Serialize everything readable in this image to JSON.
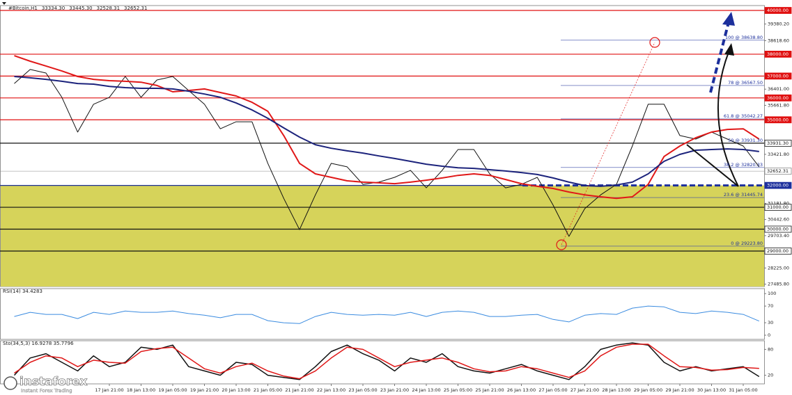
{
  "chart_data": [
    {
      "type": "line",
      "title": "#Bitcoin,H1",
      "header": [
        {
          "value": 33334.3,
          "label": "33334.30"
        },
        {
          "value": 33445.3,
          "label": "33445.30"
        },
        {
          "value": 32528.31,
          "label": "32528.31"
        },
        {
          "value": 32652.31,
          "label": "32652.31"
        }
      ],
      "ylim": [
        27378,
        40223
      ],
      "yticks": [
        {
          "value": 39380.2,
          "label": "39380.20"
        },
        {
          "value": 38618.6,
          "label": "38618.60"
        },
        {
          "value": 36401,
          "label": "36401.00"
        },
        {
          "value": 35661.8,
          "label": "35661.80"
        },
        {
          "value": 33421.8,
          "label": "33421.80"
        },
        {
          "value": 31181.8,
          "label": "31181.80"
        },
        {
          "value": 30442.6,
          "label": "30442.60"
        },
        {
          "value": 29703.4,
          "label": "29703.40"
        },
        {
          "value": 28225,
          "label": "28225.00"
        },
        {
          "value": 27485.8,
          "label": "27485.80"
        }
      ],
      "zone": {
        "from": 32000,
        "color": "#d6d35a"
      },
      "levels": [
        {
          "value": 40000,
          "label": "40000.00",
          "color": "#e01010",
          "style": "solid"
        },
        {
          "value": 38000,
          "label": "38000.00",
          "color": "#e01010",
          "style": "solid"
        },
        {
          "value": 37000,
          "label": "37000.00",
          "color": "#e01010",
          "style": "solid"
        },
        {
          "value": 36000,
          "label": "36000.00",
          "color": "#e01010",
          "style": "solid"
        },
        {
          "value": 35000,
          "label": "35000.00",
          "color": "#e01010",
          "style": "solid"
        },
        {
          "value": 33931.3,
          "label": "33931.30",
          "color": "#111111",
          "style": "solid"
        },
        {
          "value": 32652.31,
          "label": "32652.31",
          "color": "#8a8a8a",
          "style": "thin"
        },
        {
          "value": 32000,
          "label": "32000.00",
          "color": "#1c2f9c",
          "style": "dashed"
        },
        {
          "value": 31000,
          "label": "31000.00",
          "color": "#111111",
          "style": "solid"
        },
        {
          "value": 30000,
          "label": "30000.00",
          "color": "#111111",
          "style": "solid"
        },
        {
          "value": 29000,
          "label": "29000.00",
          "color": "#111111",
          "style": "solid"
        }
      ],
      "fib": [
        {
          "value": 38638.8,
          "label": "100 @ 38638.80"
        },
        {
          "value": 36567.5,
          "label": "78 @ 36567.50"
        },
        {
          "value": 35042.27,
          "label": "61.8 @ 35042.27"
        },
        {
          "value": 33931.3,
          "label": "50 @ 33931.30"
        },
        {
          "value": 32820.33,
          "label": "38.2 @ 32820.33"
        },
        {
          "value": 31445.74,
          "label": "23.6 @ 31445.74"
        },
        {
          "value": 29223.8,
          "label": "0 @ 29223.80"
        }
      ],
      "series": [
        {
          "color": "#111111",
          "width": 1,
          "values": [
            36660,
            37300,
            37140,
            36030,
            34440,
            35710,
            36030,
            36980,
            36030,
            36820,
            36980,
            36340,
            35710,
            34590,
            34910,
            34910,
            33010,
            31410,
            29980,
            31570,
            33010,
            32850,
            32050,
            32150,
            32370,
            32690,
            31890,
            32690,
            33640,
            33640,
            32530,
            31890,
            32050,
            32370,
            31100,
            29670,
            30940,
            31570,
            32050,
            33800,
            35710,
            35710,
            34280,
            34120,
            34440,
            34120,
            33800,
            32850
          ]
        },
        {
          "color": "#e01818",
          "width": 2,
          "values": [
            37930,
            37680,
            37460,
            37230,
            36980,
            36850,
            36790,
            36760,
            36720,
            36570,
            36280,
            36340,
            36410,
            36250,
            36090,
            35800,
            35390,
            34280,
            33010,
            32530,
            32370,
            32210,
            32150,
            32120,
            32080,
            32150,
            32240,
            32340,
            32460,
            32530,
            32460,
            32270,
            32080,
            31960,
            31860,
            31700,
            31570,
            31480,
            31410,
            31480,
            32050,
            33320,
            33800,
            34180,
            34440,
            34560,
            34590,
            34120
          ]
        },
        {
          "color": "#1c237c",
          "width": 2,
          "values": [
            36980,
            36920,
            36850,
            36760,
            36660,
            36630,
            36530,
            36470,
            36440,
            36440,
            36410,
            36310,
            36180,
            36030,
            35770,
            35450,
            35070,
            34630,
            34210,
            33860,
            33700,
            33580,
            33480,
            33350,
            33230,
            33100,
            32970,
            32880,
            32810,
            32780,
            32720,
            32660,
            32590,
            32500,
            32340,
            32150,
            31990,
            31960,
            32020,
            32150,
            32530,
            33100,
            33420,
            33610,
            33640,
            33670,
            33640,
            33550
          ]
        }
      ]
    },
    {
      "type": "line",
      "title": "RSI(14) 34.4283",
      "ylim": [
        -10,
        112
      ],
      "yticks": [
        100,
        70,
        30,
        0
      ],
      "series": [
        {
          "color": "#3a8be0",
          "width": 1,
          "values": [
            45,
            55,
            50,
            50,
            40,
            55,
            50,
            58,
            55,
            55,
            58,
            52,
            48,
            42,
            50,
            50,
            35,
            30,
            28,
            45,
            55,
            50,
            48,
            50,
            48,
            55,
            45,
            55,
            58,
            55,
            45,
            45,
            48,
            50,
            38,
            32,
            48,
            52,
            50,
            65,
            70,
            68,
            55,
            52,
            58,
            55,
            50,
            34
          ]
        }
      ]
    },
    {
      "type": "line",
      "title": "Sto(34,5,3) 16.9278 35.7796",
      "ylim": [
        0,
        100
      ],
      "yticks": [
        80,
        20
      ],
      "categories": [
        null,
        null,
        null,
        null,
        null,
        null,
        "17 Jan 21:00",
        null,
        "18 Jan 13:00",
        null,
        "19 Jan 05:00",
        null,
        "19 Jan 21:00",
        null,
        "20 Jan 13:00",
        null,
        "21 Jan 05:00",
        null,
        "21 Jan 21:00",
        null,
        "22 Jan 13:00",
        null,
        "23 Jan 05:00",
        null,
        "23 Jan 21:00",
        null,
        "24 Jan 13:00",
        null,
        "25 Jan 05:00",
        null,
        "25 Jan 21:00",
        null,
        "26 Jan 13:00",
        null,
        "27 Jan 05:00",
        null,
        "27 Jan 21:00",
        null,
        "28 Jan 13:00",
        null,
        "29 Jan 05:00",
        null,
        "29 Jan 21:00",
        null,
        "30 Jan 13:00",
        null,
        "31 Jan 05:00",
        null
      ],
      "series": [
        {
          "color": "#111111",
          "width": 1.5,
          "values": [
            20,
            60,
            70,
            50,
            30,
            65,
            40,
            50,
            85,
            80,
            90,
            40,
            30,
            20,
            50,
            45,
            20,
            15,
            10,
            40,
            75,
            90,
            70,
            55,
            30,
            60,
            50,
            70,
            40,
            30,
            25,
            35,
            45,
            30,
            20,
            10,
            40,
            80,
            90,
            95,
            90,
            50,
            30,
            40,
            30,
            35,
            40,
            17
          ]
        },
        {
          "color": "#e01818",
          "width": 1.5,
          "values": [
            25,
            50,
            65,
            60,
            40,
            55,
            50,
            48,
            75,
            82,
            85,
            60,
            35,
            25,
            40,
            48,
            30,
            18,
            12,
            30,
            60,
            85,
            80,
            60,
            40,
            50,
            55,
            60,
            50,
            35,
            28,
            30,
            40,
            35,
            25,
            15,
            30,
            65,
            85,
            92,
            92,
            65,
            40,
            38,
            32,
            33,
            38,
            36
          ]
        }
      ]
    }
  ],
  "logo": {
    "name": "instaforex",
    "tagline": "Instant Forex Trading"
  }
}
